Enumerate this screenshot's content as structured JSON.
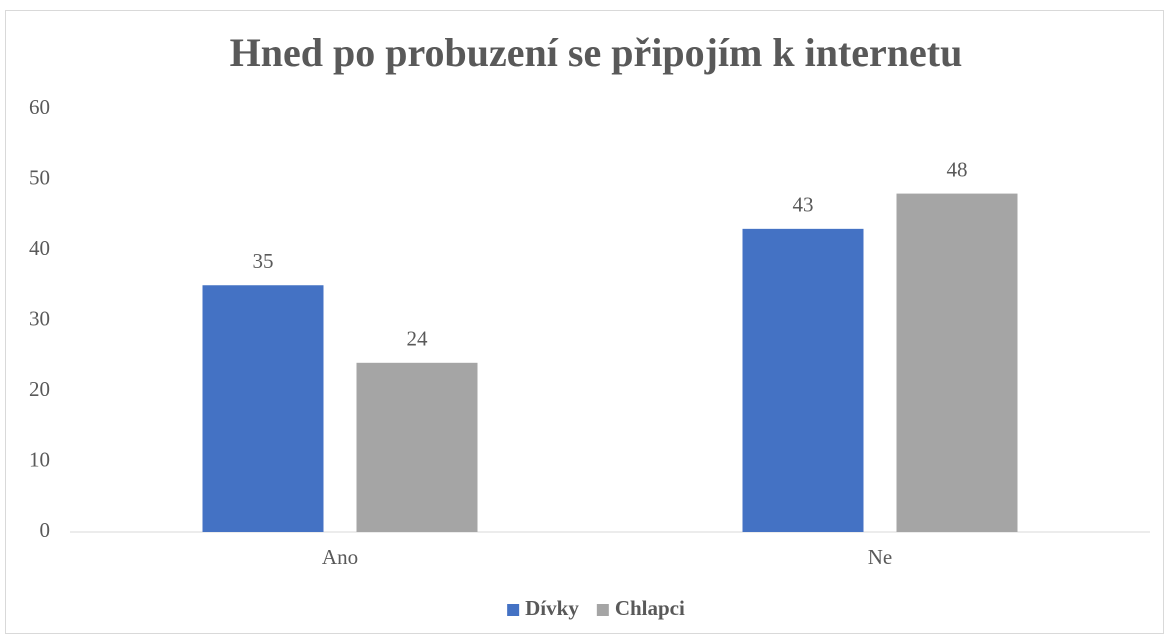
{
  "chart_data": {
    "type": "bar",
    "title": "Hned po probuzení se připojím k internetu",
    "categories": [
      "Ano",
      "Ne"
    ],
    "series": [
      {
        "name": "Dívky",
        "color": "#4472c4",
        "values": [
          35,
          43
        ]
      },
      {
        "name": "Chlapci",
        "color": "#a5a5a5",
        "values": [
          24,
          48
        ]
      }
    ],
    "ylim": [
      0,
      60
    ],
    "yticks": [
      0,
      10,
      20,
      30,
      40,
      50,
      60
    ],
    "grid": false,
    "legend": "bottom"
  }
}
